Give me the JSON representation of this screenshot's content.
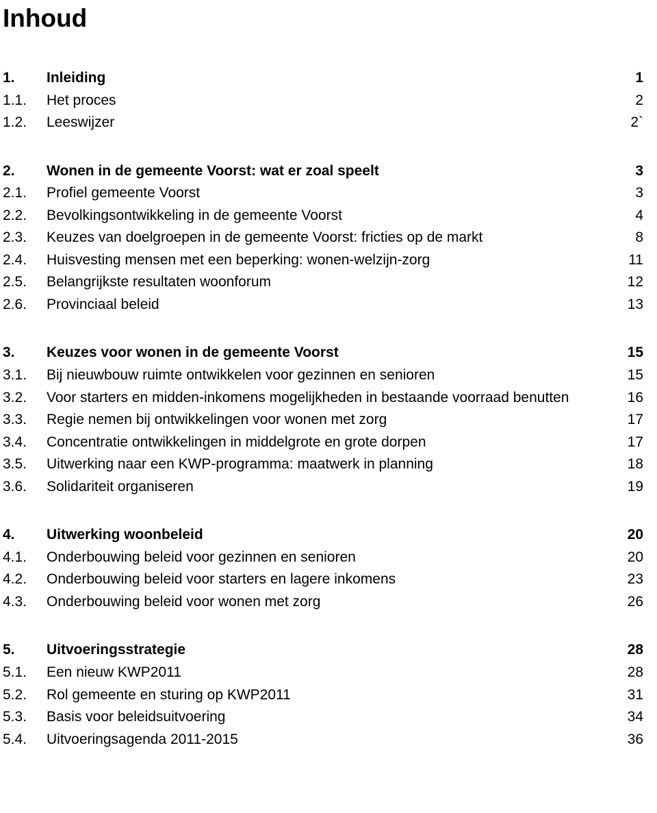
{
  "title": "Inhoud",
  "sections": [
    {
      "head": {
        "num": "1.",
        "label": "Inleiding",
        "page": "1",
        "bold": true
      },
      "items": [
        {
          "num": "1.1.",
          "label": "Het proces",
          "page": "2"
        },
        {
          "num": "1.2.",
          "label": "Leeswijzer",
          "page": "2`"
        }
      ]
    },
    {
      "head": {
        "num": "2.",
        "label": "Wonen in de gemeente Voorst: wat er zoal speelt",
        "page": "3",
        "bold": true
      },
      "items": [
        {
          "num": "2.1.",
          "label": "Profiel gemeente Voorst",
          "page": "3"
        },
        {
          "num": "2.2.",
          "label": "Bevolkingsontwikkeling in de gemeente Voorst",
          "page": "4"
        },
        {
          "num": "2.3.",
          "label": "Keuzes van doelgroepen in de gemeente Voorst: fricties op de markt",
          "page": "8"
        },
        {
          "num": "2.4.",
          "label": "Huisvesting mensen met een beperking: wonen-welzijn-zorg",
          "page": "11"
        },
        {
          "num": "2.5.",
          "label": "Belangrijkste resultaten woonforum",
          "page": "12"
        },
        {
          "num": "2.6.",
          "label": "Provinciaal beleid",
          "page": "13"
        }
      ]
    },
    {
      "head": {
        "num": "3.",
        "label": "Keuzes voor wonen in de gemeente Voorst",
        "page": "15",
        "bold": true
      },
      "items": [
        {
          "num": "3.1.",
          "label": "Bij nieuwbouw ruimte ontwikkelen voor gezinnen en senioren",
          "page": "15"
        },
        {
          "num": "3.2.",
          "label": "Voor starters en midden-inkomens mogelijkheden in bestaande voorraad benutten",
          "page": "16"
        },
        {
          "num": "3.3.",
          "label": "Regie nemen bij ontwikkelingen voor wonen met zorg",
          "page": "17"
        },
        {
          "num": "3.4.",
          "label": "Concentratie ontwikkelingen in middelgrote en grote dorpen",
          "page": "17"
        },
        {
          "num": "3.5.",
          "label": "Uitwerking naar een KWP-programma: maatwerk in planning",
          "page": "18"
        },
        {
          "num": "3.6.",
          "label": "Solidariteit organiseren",
          "page": "19"
        }
      ]
    },
    {
      "head": {
        "num": "4.",
        "label": "Uitwerking woonbeleid",
        "page": "20",
        "bold": true
      },
      "items": [
        {
          "num": "4.1.",
          "label": "Onderbouwing beleid voor gezinnen en senioren",
          "page": "20"
        },
        {
          "num": "4.2.",
          "label": "Onderbouwing beleid voor starters en lagere inkomens",
          "page": "23"
        },
        {
          "num": "4.3.",
          "label": "Onderbouwing beleid voor wonen met zorg",
          "page": "26"
        }
      ]
    },
    {
      "head": {
        "num": "5.",
        "label": "Uitvoeringsstrategie",
        "page": "28",
        "bold": true
      },
      "items": [
        {
          "num": "5.1.",
          "label": "Een nieuw KWP2011",
          "page": "28"
        },
        {
          "num": "5.2.",
          "label": "Rol gemeente en sturing op KWP2011",
          "page": "31"
        },
        {
          "num": "5.3.",
          "label": "Basis voor beleidsuitvoering",
          "page": "34"
        },
        {
          "num": "5.4.",
          "label": "Uitvoeringsagenda 2011-2015",
          "page": "36"
        }
      ]
    }
  ]
}
